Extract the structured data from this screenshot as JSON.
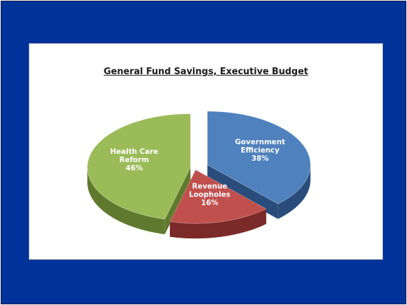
{
  "chart_data": {
    "type": "pie",
    "title": "General Fund Savings, Executive Budget",
    "slices": [
      {
        "label_lines": [
          "Government",
          "Efficiency"
        ],
        "value": 38,
        "value_label": "38%",
        "color": "#4f81bd",
        "side_color": "#2a4c7a",
        "exploded": true
      },
      {
        "label_lines": [
          "Revenue",
          "Loopholes"
        ],
        "value": 16,
        "value_label": "16%",
        "color": "#c0504d",
        "side_color": "#7a2a28",
        "exploded": false
      },
      {
        "label_lines": [
          "Health Care",
          "Reform"
        ],
        "value": 46,
        "value_label": "46%",
        "color": "#9bbb59",
        "side_color": "#5f7a2e",
        "exploded": false
      }
    ],
    "legend": "none",
    "style": "3d-exploded"
  },
  "colors": {
    "slide_background": "#003399",
    "panel_background": "#ffffff"
  }
}
